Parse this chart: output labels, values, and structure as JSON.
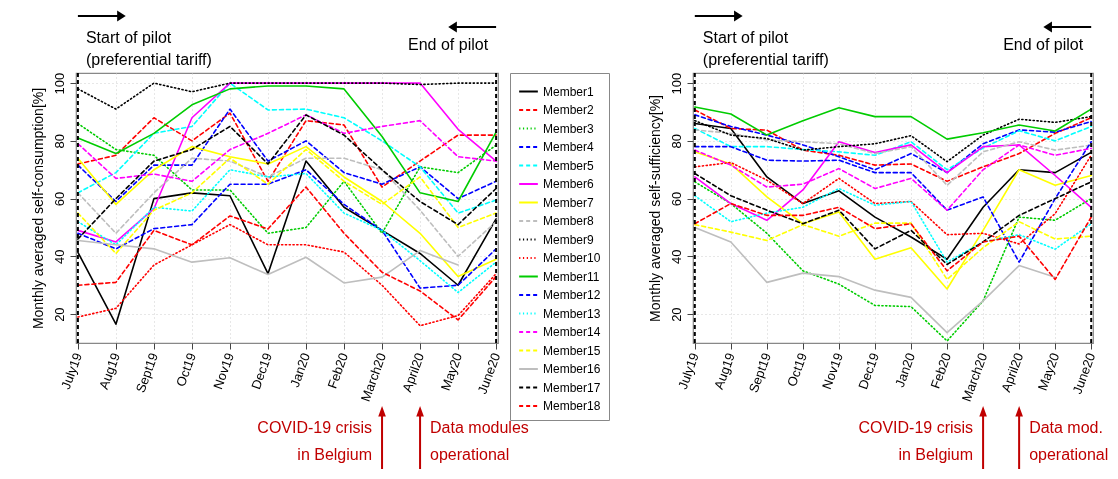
{
  "chart_data": [
    {
      "type": "line",
      "ylabel": "Monthly averaged self-consumption[%]",
      "categories": [
        "July19",
        "Aug19",
        "Sept19",
        "Oct19",
        "Nov19",
        "Dec19",
        "Jan20",
        "Feb20",
        "March20",
        "April20",
        "May20",
        "June20"
      ],
      "ylim": [
        10,
        103.5
      ],
      "yticks": [
        20,
        40,
        60,
        80,
        100
      ],
      "grid": true,
      "legend": "right",
      "ref_lines": [
        {
          "axis": "x",
          "value": "July19",
          "color": "#000000",
          "line_style": "dashed"
        },
        {
          "axis": "x",
          "value": "June20",
          "color": "#000000",
          "line_style": "dashed"
        }
      ],
      "annotations": [
        "Start of pilot\n(preferential tariff)",
        "End of pilot",
        "COVID-19 crisis\nin Belgium",
        "Data modules\noperational"
      ],
      "series": [
        {
          "name": "Member1",
          "color": "#000000",
          "line_style": "solid",
          "values": [
            41.4,
            16.5,
            60,
            62,
            61,
            34,
            73,
            57,
            49,
            41,
            30,
            53
          ]
        },
        {
          "name": "Member2",
          "color": "#ff0000",
          "line_style": "dashed",
          "values": [
            72,
            75,
            88,
            80,
            89.6,
            66,
            87,
            85.5,
            64,
            73,
            82,
            82
          ]
        },
        {
          "name": "Member3",
          "color": "#00cc00",
          "line_style": "dotted",
          "values": [
            86,
            77,
            75,
            63,
            63,
            48,
            50,
            66,
            48,
            71,
            69,
            78.5
          ]
        },
        {
          "name": "Member4",
          "color": "#0000ff",
          "line_style": "dashed",
          "values": [
            71.6,
            59,
            71.6,
            71.6,
            91,
            73,
            80,
            69,
            65,
            71,
            60,
            66
          ]
        },
        {
          "name": "Member5",
          "color": "#00ffff",
          "line_style": "dashed",
          "values": [
            62,
            69,
            82.6,
            85,
            100,
            90.7,
            91,
            88,
            80,
            71,
            55,
            59.5
          ]
        },
        {
          "name": "Member6",
          "color": "#ff00ff",
          "line_style": "solid",
          "values": [
            49,
            45,
            56.5,
            88,
            100,
            100,
            100,
            100,
            100,
            100,
            84,
            73
          ]
        },
        {
          "name": "Member7",
          "color": "#ffff00",
          "line_style": "solid",
          "values": [
            74,
            58,
            70,
            78,
            74.5,
            72,
            78,
            67.5,
            59,
            48,
            33,
            39
          ]
        },
        {
          "name": "Member8",
          "color": "#bebebe",
          "line_style": "dashed",
          "values": [
            62,
            48,
            62,
            74,
            73,
            67.5,
            74,
            74,
            70,
            56,
            40,
            52
          ]
        },
        {
          "name": "Member9",
          "color": "#000000",
          "line_style": "dotted",
          "values": [
            98,
            91,
            100,
            97,
            100,
            100,
            100,
            100,
            100,
            99.5,
            100,
            100
          ]
        },
        {
          "name": "Member10",
          "color": "#ff0000",
          "line_style": "dotted",
          "values": [
            19,
            22,
            37,
            44,
            51,
            44,
            44,
            41.5,
            30,
            16,
            19.5,
            34
          ]
        },
        {
          "name": "Member11",
          "color": "#00cc00",
          "line_style": "solid",
          "values": [
            81,
            75.6,
            82.6,
            92.5,
            98,
            99,
            99,
            98,
            81.5,
            62,
            59,
            83
          ]
        },
        {
          "name": "Member12",
          "color": "#0000ff",
          "line_style": "dashed",
          "values": [
            48,
            42.6,
            49.6,
            51,
            65,
            65,
            70,
            58,
            49,
            29,
            30,
            42.6
          ]
        },
        {
          "name": "Member13",
          "color": "#00ffff",
          "line_style": "dotted",
          "values": [
            52,
            44,
            57,
            55.7,
            70,
            67.5,
            68.7,
            55,
            49,
            38.5,
            27.5,
            38
          ]
        },
        {
          "name": "Member14",
          "color": "#ff00ff",
          "line_style": "dashed",
          "values": [
            79,
            67,
            68.5,
            66,
            77,
            82.6,
            89,
            82.6,
            85,
            87,
            74.5,
            73
          ]
        },
        {
          "name": "Member15",
          "color": "#ffff00",
          "line_style": "dashed",
          "values": [
            55,
            41,
            56,
            62,
            74,
            65,
            77,
            66,
            58,
            67.5,
            50,
            55
          ]
        },
        {
          "name": "Member16",
          "color": "#bebebe",
          "line_style": "solid",
          "values": [
            45.5,
            44,
            42.6,
            38,
            39.5,
            33.7,
            39.7,
            30.8,
            32.8,
            42,
            37,
            null
          ]
        },
        {
          "name": "Member17",
          "color": "#000000",
          "line_style": "dashed",
          "values": [
            46,
            60,
            73,
            77,
            85,
            72,
            89,
            82,
            70,
            59,
            51,
            63.5
          ]
        },
        {
          "name": "Member18",
          "color": "#ff0000",
          "line_style": "dashed",
          "values": [
            30,
            31,
            49,
            44,
            54,
            49.5,
            64,
            48,
            34.5,
            28,
            18,
            33
          ]
        }
      ]
    },
    {
      "type": "line",
      "ylabel": "Monthly averaged self-sufficiency[%]",
      "categories": [
        "July19",
        "Aug19",
        "Sept19",
        "Oct19",
        "Nov19",
        "Dec19",
        "Jan20",
        "Feb20",
        "March20",
        "April20",
        "May20",
        "June20"
      ],
      "ylim": [
        10,
        103.5
      ],
      "yticks": [
        20,
        40,
        60,
        80,
        100
      ],
      "grid": true,
      "ref_lines": [
        {
          "axis": "x",
          "value": "July19",
          "color": "#000000",
          "line_style": "dashed"
        },
        {
          "axis": "x",
          "value": "June20",
          "color": "#000000",
          "line_style": "dashed"
        }
      ],
      "annotations": [
        "Start of pilot\n(preferential tariff)",
        "End of pilot",
        "COVID-19 crisis\nin Belgium",
        "Data mod.\noperational"
      ],
      "series": [
        {
          "color": "#000000",
          "line_style": "solid",
          "values": [
            86,
            84.3,
            67.5,
            58.3,
            62.7,
            53.6,
            46.7,
            39,
            57,
            70,
            69,
            76
          ]
        },
        {
          "color": "#ff0000",
          "line_style": "dashed",
          "values": [
            90.7,
            84.3,
            83.7,
            76.8,
            75,
            71.6,
            72,
            66,
            71,
            75.6,
            82.6,
            88
          ]
        },
        {
          "color": "#00cc00",
          "line_style": "dotted",
          "values": [
            65.8,
            58.3,
            48,
            35,
            30.4,
            23,
            22.6,
            10.7,
            24.6,
            53.6,
            52.5,
            60
          ]
        },
        {
          "color": "#0000ff",
          "line_style": "dashed",
          "values": [
            89,
            85,
            82,
            78.6,
            74.5,
            70,
            75.6,
            69,
            79,
            83.8,
            83,
            86.7
          ]
        },
        {
          "color": "#00ffff",
          "line_style": "dashed",
          "values": [
            84.3,
            78,
            78,
            77,
            76.2,
            75,
            79.7,
            70,
            77.5,
            83.5,
            80,
            85
          ]
        },
        {
          "color": "#ff00ff",
          "line_style": "solid",
          "values": [
            67.5,
            58.3,
            52.5,
            63,
            79.7,
            76,
            78.6,
            69,
            78,
            78.6,
            68,
            57
          ]
        },
        {
          "color": "#ffff00",
          "line_style": "solid",
          "values": [
            76.2,
            72,
            60.6,
            51.3,
            55.4,
            39,
            43,
            28.7,
            49,
            70,
            64.6,
            68
          ]
        },
        {
          "color": "#bebebe",
          "line_style": "dashed",
          "values": [
            83.8,
            82.6,
            80.3,
            79.7,
            79,
            75.6,
            78,
            64.6,
            76.2,
            79.7,
            76.8,
            78.5
          ]
        },
        {
          "color": "#000000",
          "line_style": "dotted",
          "values": [
            87,
            82,
            80.8,
            76.8,
            78,
            79,
            81.8,
            72.8,
            82,
            87.5,
            86.4,
            88.4
          ]
        },
        {
          "color": "#ff0000",
          "line_style": "dotted",
          "values": [
            71,
            72.5,
            66.4,
            58.3,
            67,
            58.3,
            59,
            47.5,
            48,
            44.3,
            54.8,
            75
          ]
        },
        {
          "color": "#00cc00",
          "line_style": "solid",
          "values": [
            91.7,
            89.3,
            82,
            87,
            91.5,
            88.4,
            88.4,
            80.6,
            82.8,
            85.5,
            83.4,
            91
          ]
        },
        {
          "color": "#0000ff",
          "line_style": "dashed",
          "values": [
            78,
            78,
            73.3,
            73,
            73.3,
            69,
            69,
            56,
            60.6,
            38,
            60,
            79.7
          ]
        },
        {
          "color": "#00ffff",
          "line_style": "dotted",
          "values": [
            61,
            52,
            55,
            57,
            63.5,
            57.7,
            59,
            38,
            45,
            47.5,
            42.5,
            51.3
          ]
        },
        {
          "color": "#ff00ff",
          "line_style": "dashed",
          "values": [
            76.8,
            71.6,
            64,
            65,
            70.4,
            63.5,
            67,
            56,
            70,
            78.6,
            75,
            77.4
          ]
        },
        {
          "color": "#ffff00",
          "line_style": "dashed",
          "values": [
            51,
            48.4,
            45.5,
            51,
            47,
            51.5,
            51.5,
            32,
            43,
            52,
            46,
            47
          ]
        },
        {
          "color": "#bebebe",
          "line_style": "solid",
          "values": [
            50,
            45,
            31,
            34.2,
            33,
            28.3,
            25.8,
            13.6,
            24.6,
            36.8,
            32.8,
            null
          ]
        },
        {
          "color": "#000000",
          "line_style": "dashed",
          "values": [
            68.7,
            61,
            56,
            51.3,
            56,
            42.6,
            49,
            37.2,
            45,
            54.2,
            60,
            65.8
          ]
        },
        {
          "color": "#ff0000",
          "line_style": "dashed",
          "values": [
            51.3,
            58.3,
            54.2,
            54.2,
            57,
            49.6,
            51.3,
            35,
            45,
            47,
            32,
            53.6
          ]
        }
      ]
    }
  ]
}
